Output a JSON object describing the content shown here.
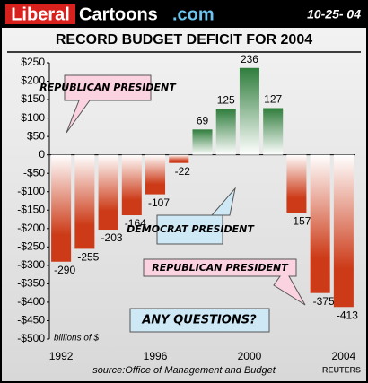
{
  "header": {
    "logo": [
      "Liberal",
      "Cartoons",
      ".com"
    ],
    "date": "10-25- 04"
  },
  "chart_data": {
    "type": "bar",
    "title": "RECORD BUDGET DEFICIT FOR 2004",
    "categories": [
      "1992",
      null,
      null,
      null,
      "1996",
      null,
      null,
      null,
      "2000",
      null,
      null,
      null,
      "2004"
    ],
    "values": [
      -290,
      -255,
      -203,
      -164,
      -107,
      -22,
      69,
      125,
      236,
      127,
      -157,
      -375,
      -413
    ],
    "colors": {
      "positive": "#2f7d3c",
      "negative": "#cc3a17"
    },
    "ylim": [
      -500,
      250
    ],
    "yticks": [
      {
        "value": -500,
        "label": "-$500"
      },
      {
        "value": -450,
        "label": "-$450"
      },
      {
        "value": -400,
        "label": "-$400"
      },
      {
        "value": -350,
        "label": "-$350"
      },
      {
        "value": -300,
        "label": "-$300"
      },
      {
        "value": -250,
        "label": "-$250"
      },
      {
        "value": -200,
        "label": "-$200"
      },
      {
        "value": -150,
        "label": "-$150"
      },
      {
        "value": -100,
        "label": "-$100"
      },
      {
        "value": -50,
        "label": "-$50"
      },
      0,
      {
        "value": 50,
        "label": "$50"
      },
      {
        "value": 100,
        "label": "$100"
      },
      {
        "value": 150,
        "label": "$150"
      },
      {
        "value": 200,
        "label": "$200"
      },
      {
        "value": 250,
        "label": "$250"
      }
    ],
    "annotations": [
      "REPUBLICAN PRESIDENT",
      "DEMOCRAT PRESIDENT",
      "REPUBLICAN PRESIDENT",
      "ANY QUESTIONS?"
    ],
    "unit_note": "billions of $",
    "source": "source:Office of Management and Budget",
    "credit": "REUTERS"
  }
}
